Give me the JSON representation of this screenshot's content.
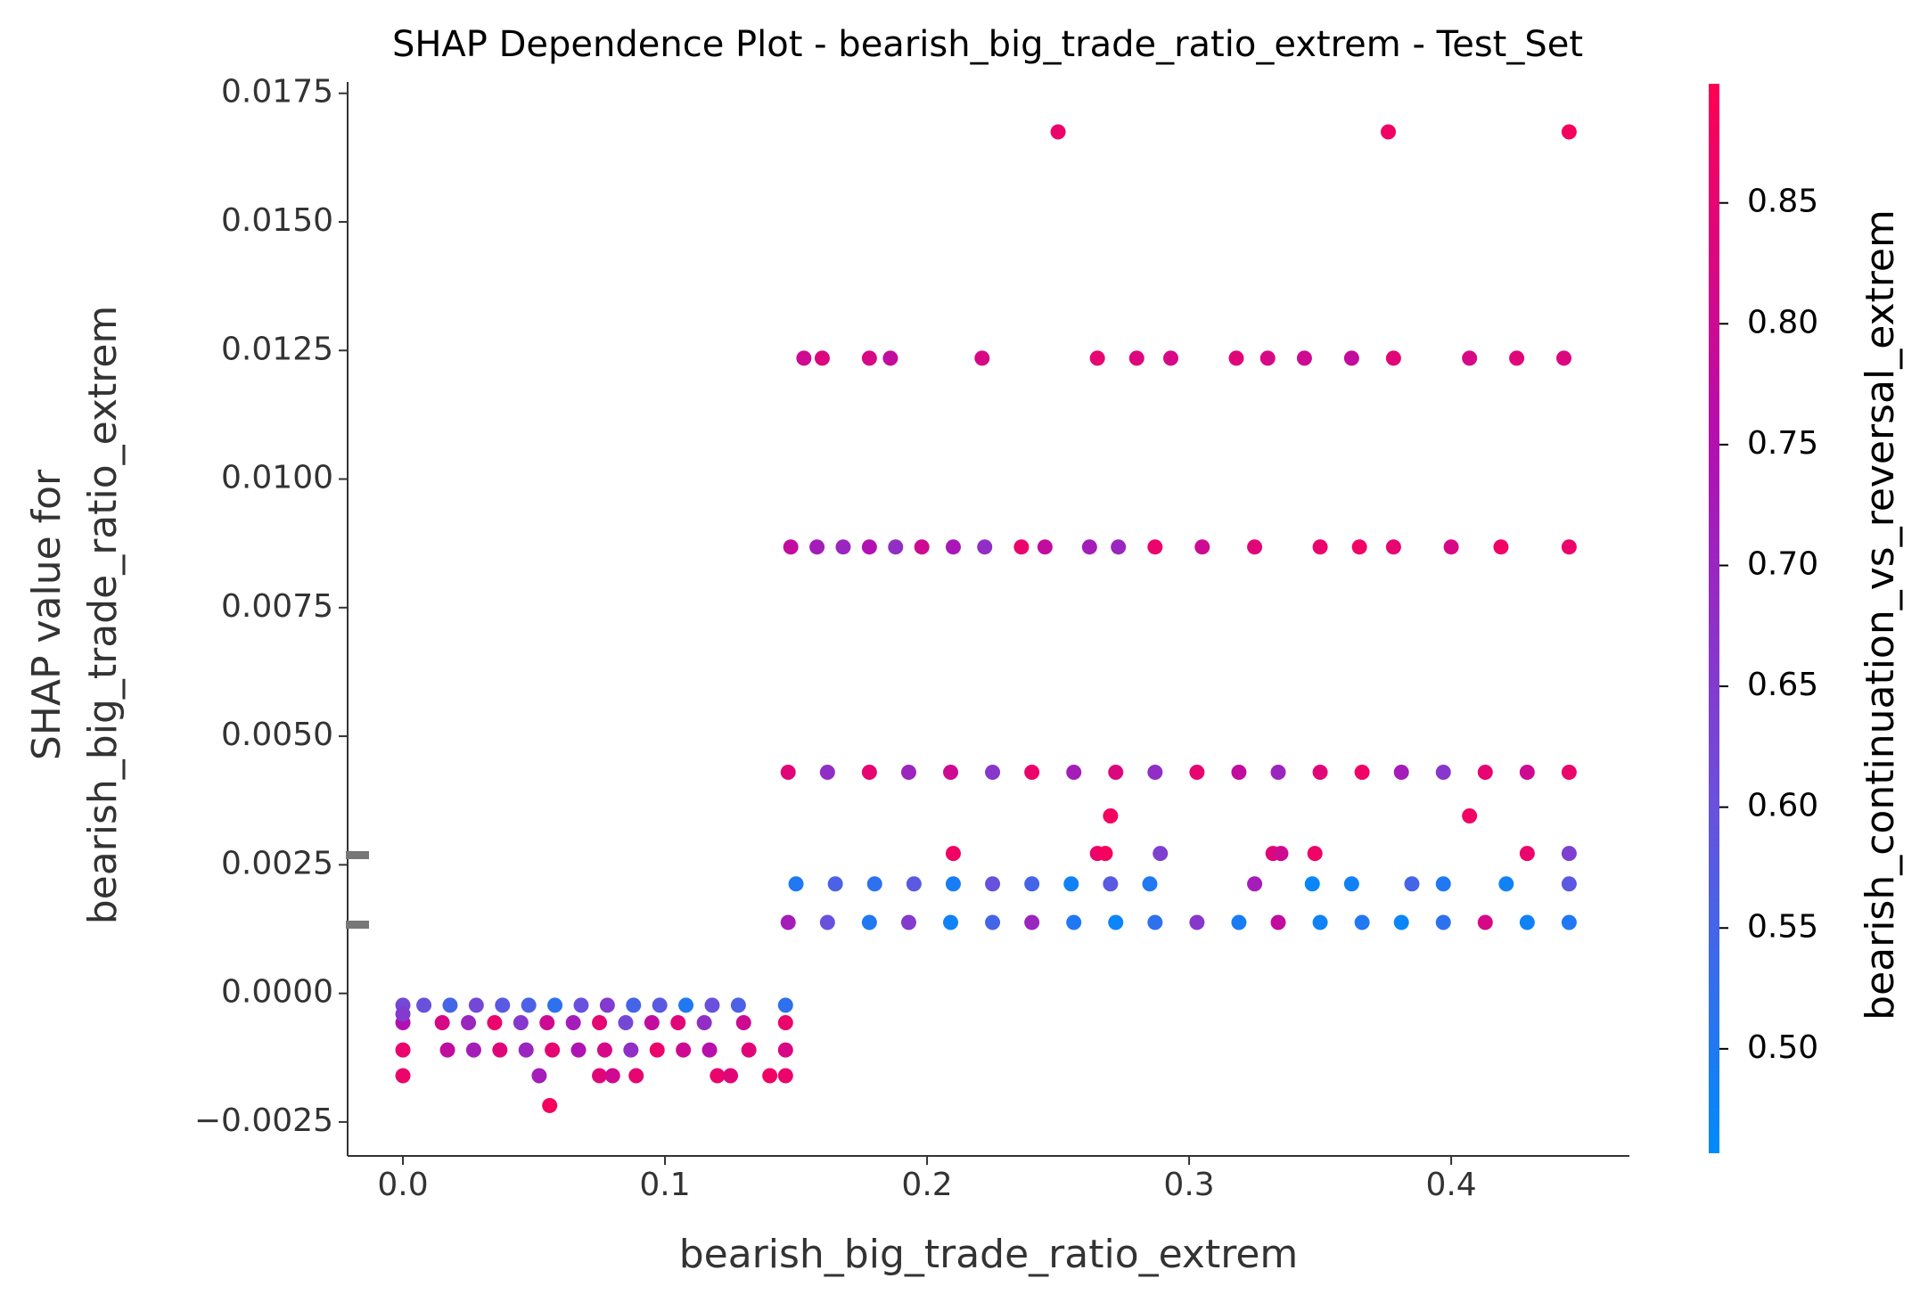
{
  "chart_data": {
    "type": "scatter",
    "title": "SHAP Dependence Plot - bearish_big_trade_ratio_extrem - Test_Set",
    "xlabel": "bearish_big_trade_ratio_extrem",
    "ylabel": [
      "SHAP value for",
      "bearish_big_trade_ratio_extrem"
    ],
    "xlim": [
      -0.0211,
      0.468
    ],
    "ylim": [
      -0.00316,
      0.01772
    ],
    "xticks": [
      {
        "value": 0.0,
        "label": "0.0"
      },
      0.1,
      0.2,
      0.3,
      0.4
    ],
    "yticks": [
      {
        "value": -0.0025,
        "label": "−0.0025"
      },
      {
        "value": 0.0,
        "label": "0.0000"
      },
      0.0025,
      {
        "value": 0.005,
        "label": "0.0050"
      },
      0.0075,
      {
        "value": 0.01,
        "label": "0.0100"
      },
      0.0125,
      {
        "value": 0.015,
        "label": "0.0150"
      },
      0.0175
    ],
    "colorbar": {
      "label": "bearish_continuation_vs_reversal_extrem",
      "lim": [
        0.4568,
        0.8993
      ],
      "ticks": [
        {
          "value": 0.5,
          "label": "0.50"
        },
        0.55,
        {
          "value": 0.6,
          "label": "0.60"
        },
        0.65,
        {
          "value": 0.7,
          "label": "0.70"
        },
        0.75,
        {
          "value": 0.8,
          "label": "0.80"
        },
        0.85
      ],
      "colors": [
        "#008bfb",
        "#6c4fdc",
        "#b40fb0",
        "#ff0052"
      ]
    },
    "series": [
      {
        "x": [
          0.25,
          0.376,
          0.445,
          0.153,
          0.16,
          0.178,
          0.186,
          0.221,
          0.265,
          0.28,
          0.293,
          0.318,
          0.33,
          0.344,
          0.362,
          0.378,
          0.407,
          0.425,
          0.443,
          0.148,
          0.158,
          0.168,
          0.178,
          0.188,
          0.198,
          0.21,
          0.222,
          0.236,
          0.245,
          0.262,
          0.273,
          0.287,
          0.305,
          0.325,
          0.35,
          0.365,
          0.378,
          0.4,
          0.419,
          0.445,
          0.147,
          0.162,
          0.178,
          0.193,
          0.209,
          0.225,
          0.24,
          0.256,
          0.272,
          0.287,
          0.303,
          0.319,
          0.334,
          0.35,
          0.366,
          0.381,
          0.397,
          0.413,
          0.429,
          0.445,
          0.27,
          0.407,
          0.21,
          0.265,
          0.268,
          0.289,
          0.332,
          0.335,
          0.348,
          0.429,
          0.445,
          0.15,
          0.165,
          0.18,
          0.195,
          0.21,
          0.225,
          0.24,
          0.255,
          0.27,
          0.285,
          0.325,
          0.347,
          0.362,
          0.385,
          0.397,
          0.421,
          0.445,
          0.147,
          0.162,
          0.178,
          0.193,
          0.209,
          0.225,
          0.24,
          0.256,
          0.272,
          0.287,
          0.303,
          0.319,
          0.334,
          0.35,
          0.366,
          0.381,
          0.397,
          0.413,
          0.429,
          0.445,
          0.0,
          0.008,
          0.018,
          0.028,
          0.038,
          0.048,
          0.058,
          0.068,
          0.078,
          0.088,
          0.098,
          0.108,
          0.118,
          0.128,
          0.146,
          0.0,
          0.015,
          0.025,
          0.035,
          0.045,
          0.055,
          0.065,
          0.075,
          0.085,
          0.095,
          0.105,
          0.115,
          0.13,
          0.146,
          0.0,
          0.017,
          0.027,
          0.037,
          0.047,
          0.057,
          0.067,
          0.077,
          0.087,
          0.097,
          0.107,
          0.117,
          0.132,
          0.146,
          0.0,
          0.052,
          0.075,
          0.08,
          0.089,
          0.12,
          0.125,
          0.14,
          0.146,
          0.056,
          0.0
        ],
        "y": [
          0.01675,
          0.01675,
          0.01675,
          0.01235,
          0.01235,
          0.01235,
          0.01235,
          0.01235,
          0.01235,
          0.01235,
          0.01235,
          0.01235,
          0.01235,
          0.01235,
          0.01235,
          0.01235,
          0.01235,
          0.01235,
          0.01235,
          0.00868,
          0.00868,
          0.00868,
          0.00868,
          0.00868,
          0.00868,
          0.00868,
          0.00868,
          0.00868,
          0.00868,
          0.00868,
          0.00868,
          0.00868,
          0.00868,
          0.00868,
          0.00868,
          0.00868,
          0.00868,
          0.00868,
          0.00868,
          0.00868,
          0.0043,
          0.0043,
          0.0043,
          0.0043,
          0.0043,
          0.0043,
          0.0043,
          0.0043,
          0.0043,
          0.0043,
          0.0043,
          0.0043,
          0.0043,
          0.0043,
          0.0043,
          0.0043,
          0.0043,
          0.0043,
          0.0043,
          0.0043,
          0.00345,
          0.00345,
          0.00272,
          0.00272,
          0.00272,
          0.00272,
          0.00272,
          0.00272,
          0.00272,
          0.00272,
          0.00272,
          0.00213,
          0.00213,
          0.00213,
          0.00213,
          0.00213,
          0.00213,
          0.00213,
          0.00213,
          0.00213,
          0.00213,
          0.00213,
          0.00213,
          0.00213,
          0.00213,
          0.00213,
          0.00213,
          0.00213,
          0.00138,
          0.00138,
          0.00138,
          0.00138,
          0.00138,
          0.00138,
          0.00138,
          0.00138,
          0.00138,
          0.00138,
          0.00138,
          0.00138,
          0.00138,
          0.00138,
          0.00138,
          0.00138,
          0.00138,
          0.00138,
          0.00138,
          0.00138,
          -0.00023,
          -0.00023,
          -0.00023,
          -0.00023,
          -0.00023,
          -0.00023,
          -0.00023,
          -0.00023,
          -0.00023,
          -0.00023,
          -0.00023,
          -0.00023,
          -0.00023,
          -0.00023,
          -0.00023,
          -0.00057,
          -0.00057,
          -0.00057,
          -0.00057,
          -0.00057,
          -0.00057,
          -0.00057,
          -0.00057,
          -0.00057,
          -0.00057,
          -0.00057,
          -0.00057,
          -0.00057,
          -0.00057,
          -0.0011,
          -0.0011,
          -0.0011,
          -0.0011,
          -0.0011,
          -0.0011,
          -0.0011,
          -0.0011,
          -0.0011,
          -0.0011,
          -0.0011,
          -0.0011,
          -0.0011,
          -0.0011,
          -0.0016,
          -0.0016,
          -0.0016,
          -0.0016,
          -0.0016,
          -0.0016,
          -0.0016,
          -0.0016,
          -0.0016,
          -0.00218,
          -0.0004
        ],
        "c": [
          0.86,
          0.87,
          0.88,
          0.8,
          0.83,
          0.82,
          0.78,
          0.82,
          0.85,
          0.83,
          0.82,
          0.84,
          0.82,
          0.8,
          0.78,
          0.84,
          0.82,
          0.84,
          0.83,
          0.78,
          0.72,
          0.7,
          0.75,
          0.68,
          0.8,
          0.73,
          0.68,
          0.86,
          0.78,
          0.72,
          0.7,
          0.86,
          0.8,
          0.84,
          0.86,
          0.87,
          0.85,
          0.82,
          0.87,
          0.86,
          0.84,
          0.68,
          0.85,
          0.7,
          0.8,
          0.66,
          0.86,
          0.72,
          0.83,
          0.68,
          0.85,
          0.78,
          0.7,
          0.84,
          0.87,
          0.72,
          0.66,
          0.85,
          0.8,
          0.86,
          0.88,
          0.87,
          0.87,
          0.86,
          0.88,
          0.64,
          0.84,
          0.8,
          0.87,
          0.86,
          0.64,
          0.5,
          0.56,
          0.52,
          0.58,
          0.49,
          0.6,
          0.55,
          0.48,
          0.58,
          0.5,
          0.72,
          0.47,
          0.48,
          0.55,
          0.5,
          0.48,
          0.58,
          0.72,
          0.6,
          0.5,
          0.65,
          0.48,
          0.55,
          0.7,
          0.5,
          0.47,
          0.52,
          0.66,
          0.49,
          0.78,
          0.48,
          0.5,
          0.47,
          0.52,
          0.82,
          0.48,
          0.5,
          0.62,
          0.6,
          0.55,
          0.62,
          0.58,
          0.56,
          0.52,
          0.6,
          0.65,
          0.55,
          0.58,
          0.5,
          0.6,
          0.56,
          0.52,
          0.75,
          0.82,
          0.7,
          0.86,
          0.66,
          0.8,
          0.72,
          0.85,
          0.62,
          0.78,
          0.84,
          0.68,
          0.8,
          0.86,
          0.86,
          0.78,
          0.72,
          0.84,
          0.7,
          0.85,
          0.74,
          0.82,
          0.68,
          0.86,
          0.8,
          0.76,
          0.84,
          0.82,
          0.86,
          0.72,
          0.84,
          0.8,
          0.85,
          0.86,
          0.84,
          0.87,
          0.86,
          0.88,
          0.65
        ]
      }
    ]
  }
}
